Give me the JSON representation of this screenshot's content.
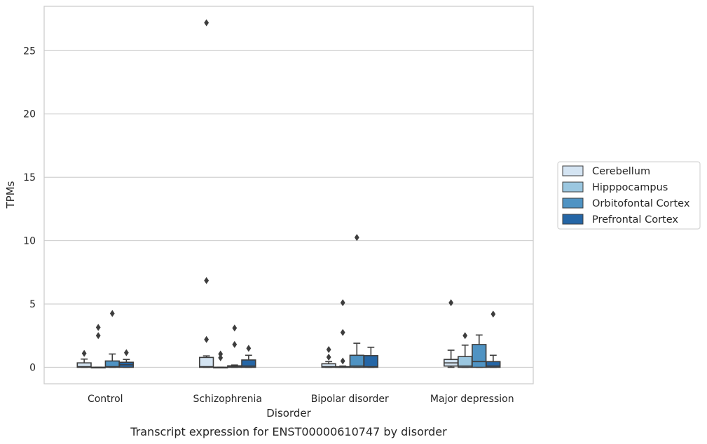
{
  "chart_data": {
    "type": "box",
    "title": "",
    "caption": "Transcript expression for ENST00000610747 by disorder",
    "xlabel": "Disorder",
    "ylabel": "TPMs",
    "ylim": [
      -1.3,
      28.5
    ],
    "yticks": [
      0,
      5,
      10,
      15,
      20,
      25
    ],
    "grid": true,
    "legend_position": "right",
    "categories": [
      "Control",
      "Schizophrenia",
      "Bipolar disorder",
      "Major depression"
    ],
    "series": [
      {
        "name": "Cerebellum",
        "color": "#d4e4f2",
        "boxes": [
          {
            "q1": 0,
            "median": 0.05,
            "q3": 0.35,
            "whisker_low": 0,
            "whisker_high": 0.65,
            "outliers": [
              1.1
            ]
          },
          {
            "q1": 0,
            "median": 0.05,
            "q3": 0.78,
            "whisker_low": 0,
            "whisker_high": 0.9,
            "outliers": [
              2.2,
              6.85,
              27.2
            ]
          },
          {
            "q1": 0,
            "median": 0.05,
            "q3": 0.28,
            "whisker_low": 0,
            "whisker_high": 0.45,
            "outliers": [
              0.8,
              1.4
            ]
          },
          {
            "q1": 0.1,
            "median": 0.35,
            "q3": 0.62,
            "whisker_low": 0,
            "whisker_high": 1.35,
            "outliers": [
              5.1
            ]
          }
        ]
      },
      {
        "name": "Hipppocampus",
        "color": "#9bc7e0",
        "boxes": [
          {
            "q1": 0,
            "median": 0,
            "q3": 0,
            "whisker_low": 0,
            "whisker_high": 0,
            "outliers": [
              2.5,
              3.15
            ]
          },
          {
            "q1": 0,
            "median": 0,
            "q3": 0,
            "whisker_low": 0,
            "whisker_high": 0,
            "outliers": [
              0.75,
              1.05
            ]
          },
          {
            "q1": 0,
            "median": 0,
            "q3": 0.05,
            "whisker_low": 0,
            "whisker_high": 0.1,
            "outliers": [
              0.5,
              2.75,
              5.1
            ]
          },
          {
            "q1": 0,
            "median": 0.1,
            "q3": 0.85,
            "whisker_low": 0,
            "whisker_high": 1.75,
            "outliers": [
              2.5
            ]
          }
        ]
      },
      {
        "name": "Orbitofontal Cortex",
        "color": "#4f93c3",
        "boxes": [
          {
            "q1": 0,
            "median": 0.05,
            "q3": 0.5,
            "whisker_low": 0,
            "whisker_high": 1.05,
            "outliers": [
              4.25
            ]
          },
          {
            "q1": 0,
            "median": 0.05,
            "q3": 0.12,
            "whisker_low": 0,
            "whisker_high": 0.18,
            "outliers": [
              1.8,
              3.1
            ]
          },
          {
            "q1": 0,
            "median": 0.1,
            "q3": 0.95,
            "whisker_low": 0,
            "whisker_high": 1.9,
            "outliers": [
              10.25
            ]
          },
          {
            "q1": 0,
            "median": 0.45,
            "q3": 1.8,
            "whisker_low": 0,
            "whisker_high": 2.55,
            "outliers": []
          }
        ]
      },
      {
        "name": "Prefrontal Cortex",
        "color": "#2566a6",
        "boxes": [
          {
            "q1": 0,
            "median": 0.2,
            "q3": 0.4,
            "whisker_low": 0,
            "whisker_high": 0.62,
            "outliers": [
              1.15
            ]
          },
          {
            "q1": 0,
            "median": 0.1,
            "q3": 0.58,
            "whisker_low": 0,
            "whisker_high": 0.95,
            "outliers": [
              1.5
            ]
          },
          {
            "q1": 0,
            "median": 0.05,
            "q3": 0.92,
            "whisker_low": 0,
            "whisker_high": 1.58,
            "outliers": []
          },
          {
            "q1": 0,
            "median": 0.1,
            "q3": 0.45,
            "whisker_low": 0,
            "whisker_high": 0.95,
            "outliers": [
              4.2
            ]
          }
        ]
      }
    ]
  }
}
